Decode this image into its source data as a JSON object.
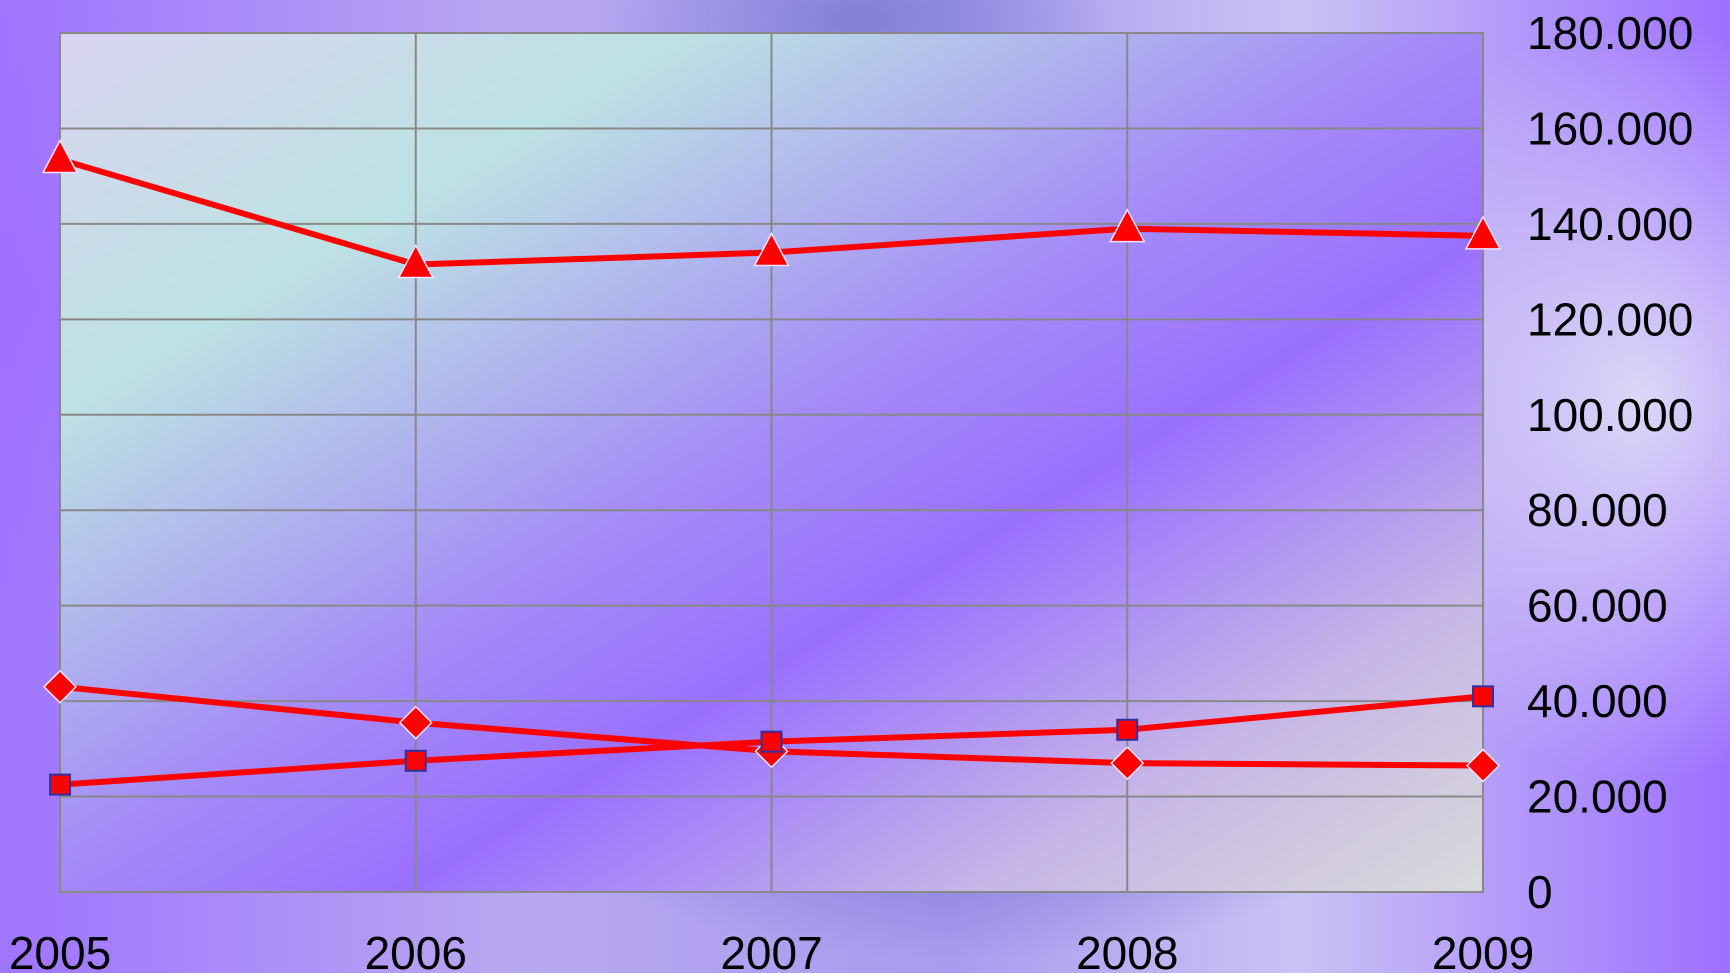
{
  "chart_data": {
    "type": "line",
    "title": "",
    "xlabel": "",
    "ylabel": "",
    "categories": [
      "2005",
      "2006",
      "2007",
      "2008",
      "2009"
    ],
    "ylim": [
      0,
      180000
    ],
    "y_ticks": [
      0,
      20000,
      40000,
      60000,
      80000,
      100000,
      120000,
      140000,
      160000,
      180000
    ],
    "y_tick_labels": [
      "0",
      "20.000",
      "40.000",
      "60.000",
      "80.000",
      "100.000",
      "120.000",
      "140.000",
      "160.000",
      "180.000"
    ],
    "y_axis_side": "right",
    "grid": true,
    "legend": "none",
    "line_color": "#ff0000",
    "series": [
      {
        "marker": "triangle",
        "marker_color": "#ff0000",
        "values": [
          153500,
          131500,
          134000,
          139000,
          137500
        ]
      },
      {
        "marker": "diamond",
        "marker_color": "#ff0000",
        "values": [
          43000,
          35500,
          29500,
          27000,
          26500
        ]
      },
      {
        "marker": "square",
        "marker_color": "#ff0000",
        "marker_border": "#3030a0",
        "values": [
          22500,
          27500,
          31500,
          34000,
          41000
        ]
      }
    ]
  }
}
